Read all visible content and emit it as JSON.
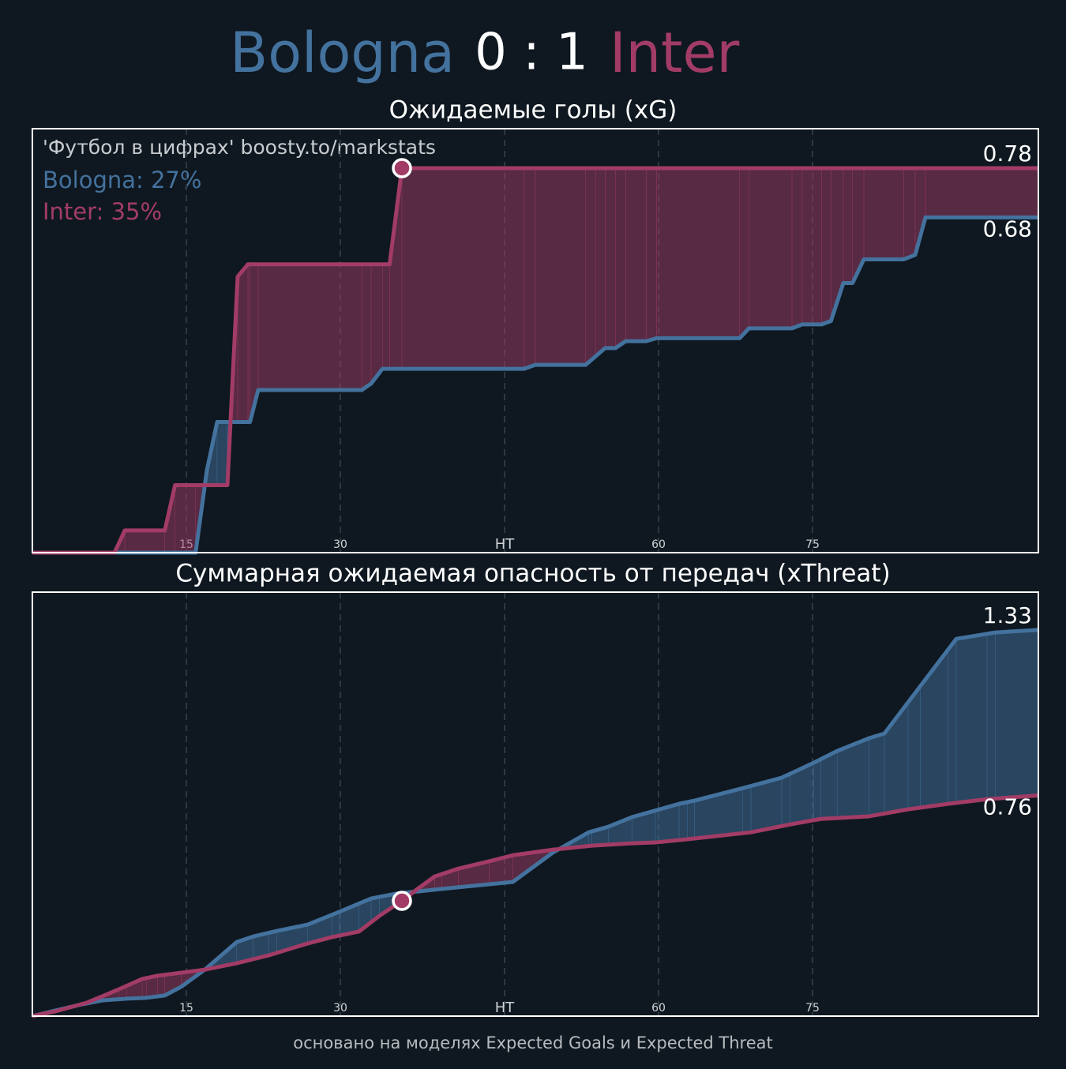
{
  "header": {
    "home": "Bologna",
    "score": "0 : 1",
    "away": "Inter"
  },
  "credit": "'Футбол в цифрах' boosty.to/markstats",
  "legend": [
    "Bologna: 27%",
    "Inter: 35%"
  ],
  "footer": "основано на моделях Expected Goals и Expected Threat",
  "chart_data": [
    {
      "type": "line",
      "title": "Ожидаемые голы (xG)",
      "fill_between": true,
      "grid": true,
      "xlim": [
        0,
        98
      ],
      "ylim": [
        0,
        0.86
      ],
      "xticks": [
        15,
        30,
        {
          "value": 46,
          "label": "HT"
        },
        {
          "value": 61,
          "label": "60"
        },
        {
          "value": 76,
          "label": "75"
        }
      ],
      "goals": [
        {
          "team": "Inter",
          "minute": 36
        }
      ],
      "series": [
        {
          "name": "Bologna",
          "color": "#44729e",
          "x": [
            0,
            15.9,
            17,
            18,
            21.2,
            22,
            32.1,
            33,
            34.1,
            47.9,
            49,
            53.9,
            54.9,
            55.8,
            56.8,
            57.8,
            59.8,
            60.8,
            68.9,
            69.8,
            74,
            75,
            76.9,
            77.8,
            79,
            79.9,
            81,
            84.9,
            86,
            87,
            98
          ],
          "values": [
            0,
            0,
            0.167,
            0.265,
            0.265,
            0.33,
            0.33,
            0.343,
            0.373,
            0.373,
            0.381,
            0.381,
            0.399,
            0.415,
            0.415,
            0.429,
            0.429,
            0.435,
            0.435,
            0.455,
            0.455,
            0.463,
            0.463,
            0.47,
            0.547,
            0.547,
            0.595,
            0.595,
            0.604,
            0.68,
            0.68
          ]
        },
        {
          "name": "Inter",
          "color": "#a23c66",
          "x": [
            0,
            8,
            9,
            12.9,
            13.9,
            19,
            20,
            21,
            34.8,
            36,
            98
          ],
          "values": [
            0,
            0,
            0.045,
            0.045,
            0.137,
            0.137,
            0.56,
            0.585,
            0.585,
            0.78,
            0.78
          ]
        }
      ]
    },
    {
      "type": "line",
      "title": "Суммарная ожидаемая опасность от передач (xThreat)",
      "fill_between": true,
      "grid": true,
      "xlim": [
        0,
        98
      ],
      "ylim": [
        0,
        1.46
      ],
      "xticks": [
        15,
        30,
        {
          "value": 46,
          "label": "HT"
        },
        {
          "value": 61,
          "label": "60"
        },
        {
          "value": 76,
          "label": "75"
        }
      ],
      "goals": [
        {
          "team": "Inter",
          "minute": 36
        }
      ],
      "series": [
        {
          "name": "Bologna",
          "color": "#44729e",
          "x": [
            0,
            2.2,
            4.5,
            6.8,
            9.2,
            11.1,
            12.9,
            14.5,
            16.8,
            19.9,
            21.5,
            23.8,
            26.8,
            29.9,
            33,
            35.3,
            39.9,
            46.8,
            50.7,
            54.2,
            56.1,
            58.4,
            63,
            64.5,
            69.2,
            73,
            76.1,
            78.4,
            81.5,
            83,
            86.5,
            90,
            93.8,
            98
          ],
          "values": [
            0,
            0.019,
            0.038,
            0.054,
            0.06,
            0.063,
            0.071,
            0.101,
            0.16,
            0.255,
            0.274,
            0.293,
            0.315,
            0.359,
            0.405,
            0.421,
            0.438,
            0.462,
            0.563,
            0.633,
            0.652,
            0.685,
            0.731,
            0.742,
            0.785,
            0.821,
            0.872,
            0.913,
            0.957,
            0.973,
            1.136,
            1.299,
            1.321,
            1.33
          ]
        },
        {
          "name": "Inter",
          "color": "#a23c66",
          "x": [
            0,
            2.2,
            5.3,
            8.4,
            10.7,
            12.2,
            16.8,
            19.9,
            23,
            26.8,
            29.2,
            31.8,
            33.8,
            36,
            37.6,
            39.2,
            41.5,
            44.5,
            46.8,
            50.7,
            54.5,
            58.4,
            60.7,
            63.8,
            70,
            73.8,
            76.8,
            81.5,
            85.3,
            89.2,
            93,
            98
          ],
          "values": [
            0,
            0.016,
            0.046,
            0.092,
            0.128,
            0.139,
            0.16,
            0.182,
            0.209,
            0.25,
            0.272,
            0.291,
            0.345,
            0.397,
            0.44,
            0.481,
            0.508,
            0.533,
            0.554,
            0.573,
            0.587,
            0.595,
            0.598,
            0.609,
            0.633,
            0.66,
            0.679,
            0.688,
            0.712,
            0.731,
            0.747,
            0.76
          ]
        }
      ]
    }
  ]
}
